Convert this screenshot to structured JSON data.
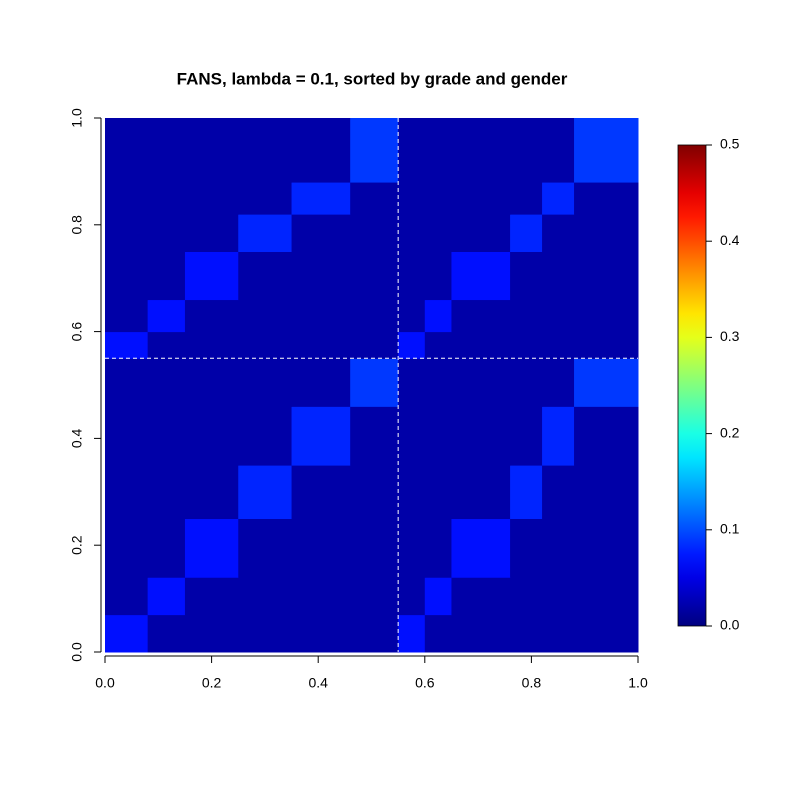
{
  "chart_data": {
    "type": "heatmap",
    "title": "FANS, lambda = 0.1, sorted by grade and gender",
    "x": [
      0,
      0.08,
      0.15,
      0.25,
      0.35,
      0.46,
      0.55,
      0.6,
      0.65,
      0.76,
      0.82,
      0.88,
      1.0
    ],
    "y": [
      0,
      0.07,
      0.14,
      0.25,
      0.35,
      0.46,
      0.55,
      0.6,
      0.66,
      0.75,
      0.82,
      0.88,
      1.0
    ],
    "values": [
      [
        0.07,
        0.02,
        0.02,
        0.02,
        0.02,
        0.02,
        0.07,
        0.02,
        0.02,
        0.02,
        0.02,
        0.02
      ],
      [
        0.02,
        0.07,
        0.02,
        0.02,
        0.02,
        0.02,
        0.02,
        0.07,
        0.02,
        0.02,
        0.02,
        0.02
      ],
      [
        0.02,
        0.02,
        0.07,
        0.02,
        0.02,
        0.02,
        0.02,
        0.02,
        0.07,
        0.02,
        0.02,
        0.02
      ],
      [
        0.02,
        0.02,
        0.02,
        0.08,
        0.02,
        0.02,
        0.02,
        0.02,
        0.02,
        0.08,
        0.02,
        0.02
      ],
      [
        0.02,
        0.02,
        0.02,
        0.02,
        0.08,
        0.02,
        0.02,
        0.02,
        0.02,
        0.02,
        0.08,
        0.02
      ],
      [
        0.02,
        0.02,
        0.02,
        0.02,
        0.02,
        0.09,
        0.02,
        0.02,
        0.02,
        0.02,
        0.02,
        0.09
      ],
      [
        0.07,
        0.02,
        0.02,
        0.02,
        0.02,
        0.02,
        0.07,
        0.02,
        0.02,
        0.02,
        0.02,
        0.02
      ],
      [
        0.02,
        0.07,
        0.02,
        0.02,
        0.02,
        0.02,
        0.02,
        0.07,
        0.02,
        0.02,
        0.02,
        0.02
      ],
      [
        0.02,
        0.02,
        0.07,
        0.02,
        0.02,
        0.02,
        0.02,
        0.02,
        0.07,
        0.02,
        0.02,
        0.02
      ],
      [
        0.02,
        0.02,
        0.02,
        0.08,
        0.02,
        0.02,
        0.02,
        0.02,
        0.02,
        0.08,
        0.02,
        0.02
      ],
      [
        0.02,
        0.02,
        0.02,
        0.02,
        0.08,
        0.02,
        0.02,
        0.02,
        0.02,
        0.02,
        0.08,
        0.02
      ],
      [
        0.02,
        0.02,
        0.02,
        0.02,
        0.02,
        0.09,
        0.02,
        0.02,
        0.02,
        0.02,
        0.02,
        0.09
      ]
    ],
    "xlim": [
      0,
      1
    ],
    "ylim": [
      0,
      1
    ],
    "xticks": [
      {
        "value": 0,
        "label": "0.0"
      },
      0.2,
      0.4,
      0.6,
      0.8,
      {
        "value": 1,
        "label": "1.0"
      }
    ],
    "yticks": [
      {
        "value": 0,
        "label": "0.0"
      },
      0.2,
      0.4,
      0.6,
      0.8,
      {
        "value": 1,
        "label": "1.0"
      }
    ],
    "zlim": [
      0,
      0.5
    ],
    "zticks": [
      {
        "value": 0,
        "label": "0.0"
      },
      0.1,
      0.2,
      0.3,
      0.4,
      0.5
    ],
    "colormap": "jet",
    "vlines": [
      0.55
    ],
    "hlines": [
      0.55
    ]
  }
}
